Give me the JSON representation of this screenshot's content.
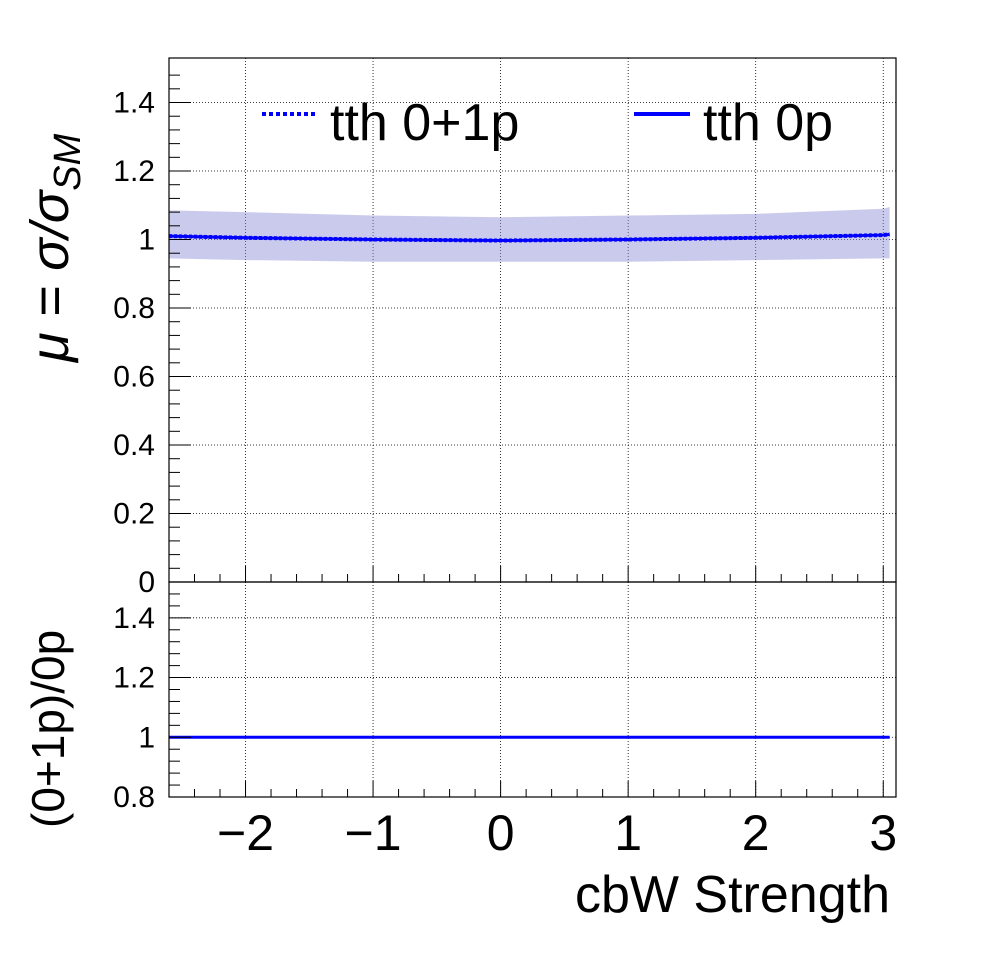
{
  "chart_data": [
    {
      "type": "line",
      "panel": "upper",
      "ylabel": {
        "main": "μ = σ/σ",
        "sub": "SM"
      },
      "ylim": [
        0,
        1.53
      ],
      "y_ticks": [
        0,
        0.2,
        0.4,
        0.6,
        0.8,
        1,
        1.2,
        1.4
      ],
      "y_tick_labels": [
        "0",
        "0.2",
        "0.4",
        "0.6",
        "0.8",
        "1",
        "1.2",
        "1.4"
      ],
      "xlim": [
        -2.6,
        3.1
      ],
      "grid": true,
      "legend_placement": "top",
      "x": [
        -2.6,
        -2.0,
        -1.0,
        0.0,
        1.0,
        2.0,
        3.0,
        3.05
      ],
      "series": [
        {
          "name": "tth 0+1p",
          "line_style": "dotted",
          "color": "#0000ff",
          "values": [
            1.01,
            1.005,
            1.0,
            0.997,
            1.0,
            1.005,
            1.013,
            1.015
          ],
          "band_low": [
            0.945,
            0.94,
            0.935,
            0.935,
            0.935,
            0.94,
            0.945,
            0.945
          ],
          "band_high": [
            1.085,
            1.08,
            1.07,
            1.065,
            1.07,
            1.075,
            1.09,
            1.095
          ]
        },
        {
          "name": "tth 0p",
          "line_style": "solid",
          "color": "#0000ff",
          "values": [
            1.01,
            1.005,
            1.0,
            0.997,
            1.0,
            1.005,
            1.013,
            1.015
          ]
        }
      ]
    },
    {
      "type": "line",
      "panel": "ratio",
      "ylabel": "(0+1p)/0p",
      "xlabel": "cbW Strength",
      "ylim": [
        0.8,
        1.52
      ],
      "y_ticks": [
        0.8,
        1,
        1.2,
        1.4
      ],
      "y_tick_labels": [
        "0.8",
        "1",
        "1.2",
        "1.4"
      ],
      "xlim": [
        -2.6,
        3.1
      ],
      "x_ticks": [
        -2,
        -1,
        0,
        1,
        2,
        3
      ],
      "x_tick_labels": [
        "−2",
        "−1",
        "0",
        "1",
        "2",
        "3"
      ],
      "grid": true,
      "x": [
        -2.6,
        3.05
      ],
      "series": [
        {
          "color": "#0000ff",
          "values": [
            1.0,
            1.0
          ]
        }
      ]
    }
  ]
}
